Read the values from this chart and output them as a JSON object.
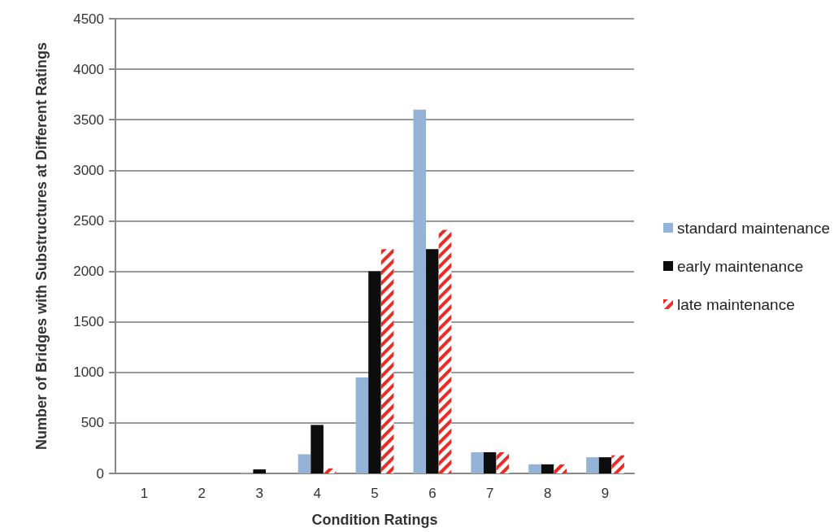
{
  "chart_data": {
    "type": "bar",
    "xlabel": "Condition Ratings",
    "ylabel": "Number of Bridges with Substructures at Different Ratings",
    "categories": [
      "1",
      "2",
      "3",
      "4",
      "5",
      "6",
      "7",
      "8",
      "9"
    ],
    "series": [
      {
        "name": "standard maintenance",
        "color": "#95b3d7",
        "values": [
          0,
          0,
          10,
          190,
          950,
          3600,
          210,
          90,
          160
        ]
      },
      {
        "name": "early maintenance",
        "color": "#0d0d0d",
        "values": [
          0,
          0,
          40,
          480,
          2000,
          2220,
          210,
          90,
          160
        ]
      },
      {
        "name": "late maintenance",
        "color": "#ee2a24",
        "values": [
          0,
          0,
          0,
          50,
          2220,
          2410,
          210,
          90,
          180
        ]
      }
    ],
    "ylim": [
      0,
      4500
    ],
    "yticks": [
      0,
      500,
      1000,
      1500,
      2000,
      2500,
      3000,
      3500,
      4000,
      4500
    ],
    "grid": "y",
    "legend": "right"
  }
}
